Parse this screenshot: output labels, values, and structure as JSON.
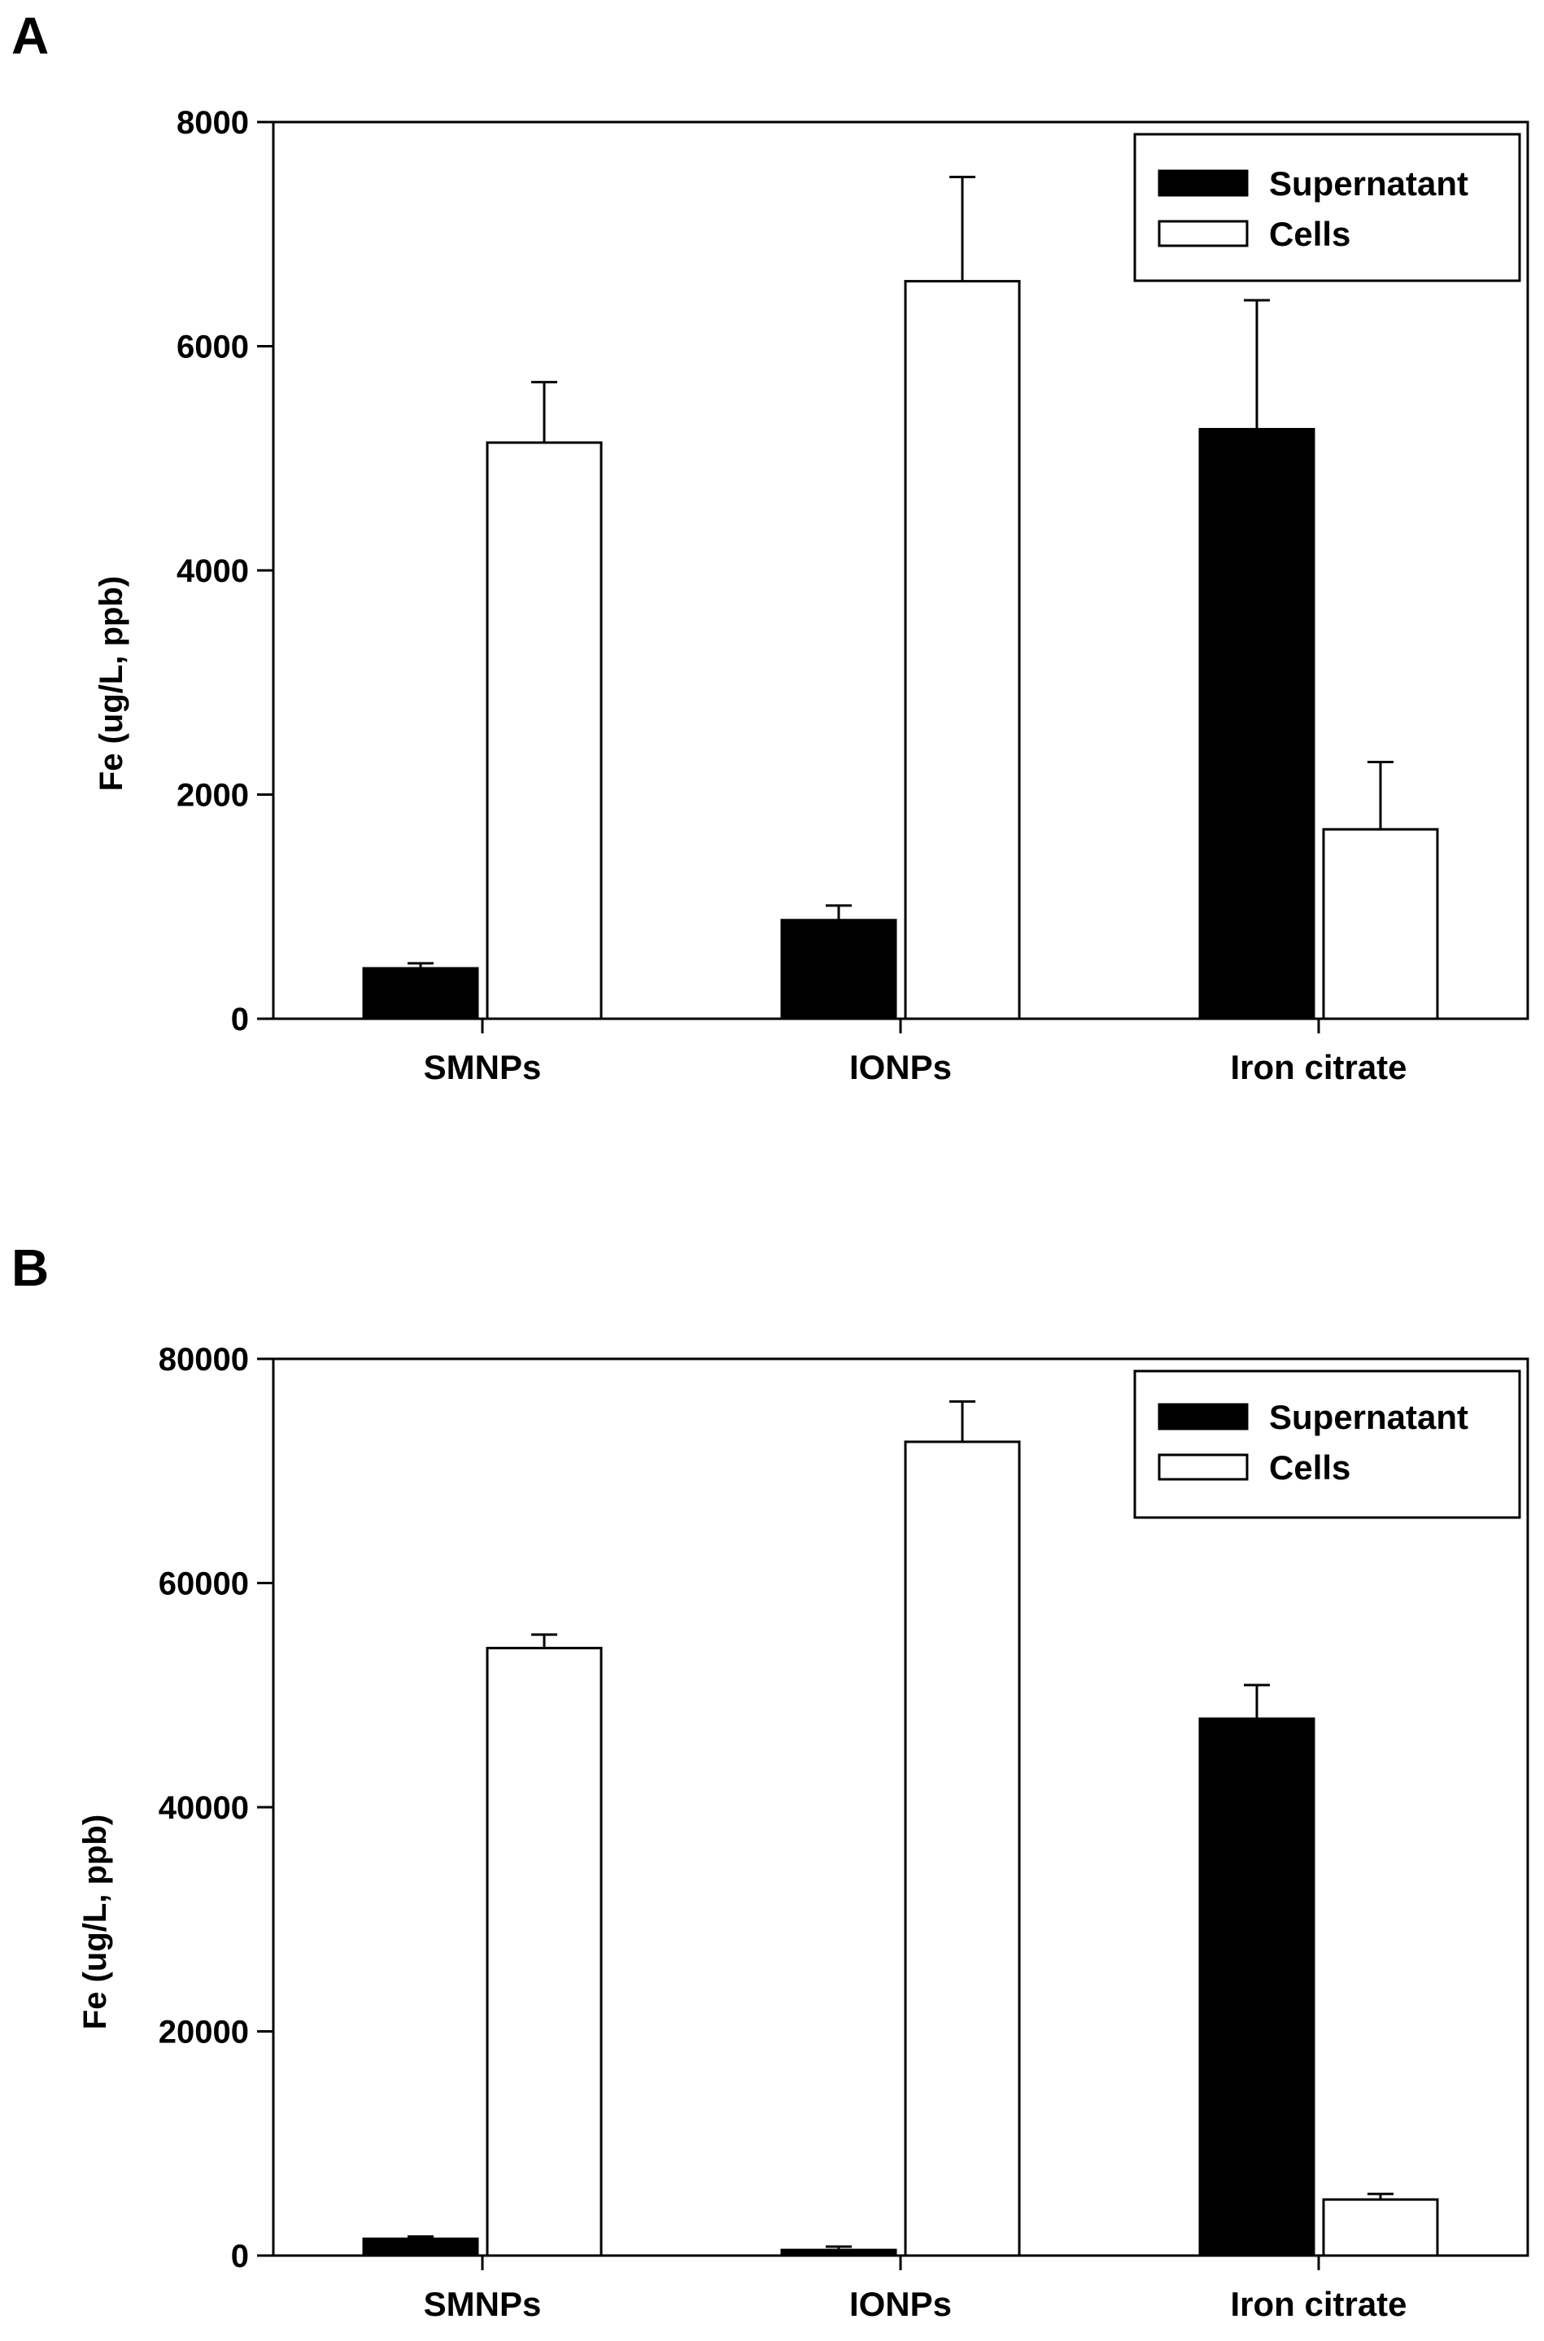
{
  "chart_data": [
    {
      "type": "bar",
      "panel": "A",
      "categories": [
        "SMNPs",
        "IONPs",
        "Iron citrate"
      ],
      "series": [
        {
          "name": "Supernatant",
          "color": "#000000",
          "values": [
            450,
            880,
            5260
          ],
          "errors": [
            45,
            130,
            1150
          ]
        },
        {
          "name": "Cells",
          "color": "#ffffff",
          "values": [
            5140,
            6580,
            1690
          ],
          "errors": [
            540,
            930,
            600
          ]
        }
      ],
      "xlabel": "",
      "ylabel": "Fe (ug/L, ppb)",
      "ylim": [
        0,
        8000
      ],
      "yticks": [
        0,
        2000,
        4000,
        6000,
        8000
      ],
      "legend": "top-right",
      "grid": false
    },
    {
      "type": "bar",
      "panel": "B",
      "categories": [
        "SMNPs",
        "IONPs",
        "Iron citrate"
      ],
      "series": [
        {
          "name": "Supernatant",
          "color": "#000000",
          "values": [
            1500,
            500,
            47900
          ],
          "errors": [
            200,
            300,
            3000
          ]
        },
        {
          "name": "Cells",
          "color": "#ffffff",
          "values": [
            54200,
            72600,
            5000
          ],
          "errors": [
            1200,
            3600,
            500
          ]
        }
      ],
      "xlabel": "",
      "ylabel": "Fe (ug/L, ppb)",
      "ylim": [
        0,
        80000
      ],
      "yticks": [
        0,
        20000,
        40000,
        60000,
        80000
      ],
      "legend": "top-right",
      "grid": false
    }
  ]
}
